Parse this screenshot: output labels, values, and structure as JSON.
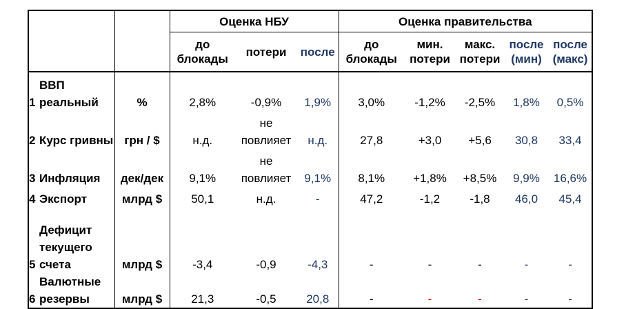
{
  "header": {
    "nbu": "Оценка НБУ",
    "gov": "Оценка правительства",
    "columns": [
      "до блокады",
      "потери",
      "после",
      "до блокады",
      "мин. потери",
      "макс. потери",
      "после (мин)",
      "после (макс)"
    ]
  },
  "rows": [
    {
      "num": "1",
      "label": "ВВП реальный",
      "unit": "%",
      "values": [
        "2,8%",
        "-0,9%",
        "1,9%",
        "3,0%",
        "-1,2%",
        "-2,5%",
        "1,8%",
        "0,5%"
      ]
    },
    {
      "num": "2",
      "label": "Курс гривны",
      "unit": "грн / $",
      "values": [
        "н.д.",
        "не повлияет",
        "н.д.",
        "27,8",
        "+3,0",
        "+5,6",
        "30,8",
        "33,4"
      ]
    },
    {
      "num": "3",
      "label": "Инфляция",
      "unit": "дек/дек",
      "values": [
        "9,1%",
        "не повлияет",
        "9,1%",
        "8,1%",
        "+1,8%",
        "+8,5%",
        "9,9%",
        "16,6%"
      ]
    },
    {
      "num": "4",
      "label": "Экспорт",
      "unit": "млрд $",
      "values": [
        "50,1",
        "н.д.",
        "-",
        "47,2",
        "-1,2",
        "-1,8",
        "46,0",
        "45,4"
      ]
    },
    {
      "num": "5",
      "label": "Дефицит текущего счета",
      "unit": "млрд $",
      "values": [
        "-3,4",
        "-0,9",
        "-4,3",
        "-",
        "-",
        "-",
        "-",
        "-"
      ]
    },
    {
      "num": "6",
      "label": "Валютные резервы",
      "unit": "млрд $",
      "values": [
        "21,3",
        "-0,5",
        "20,8",
        "-",
        "-",
        "-",
        "-",
        "-"
      ]
    }
  ]
}
